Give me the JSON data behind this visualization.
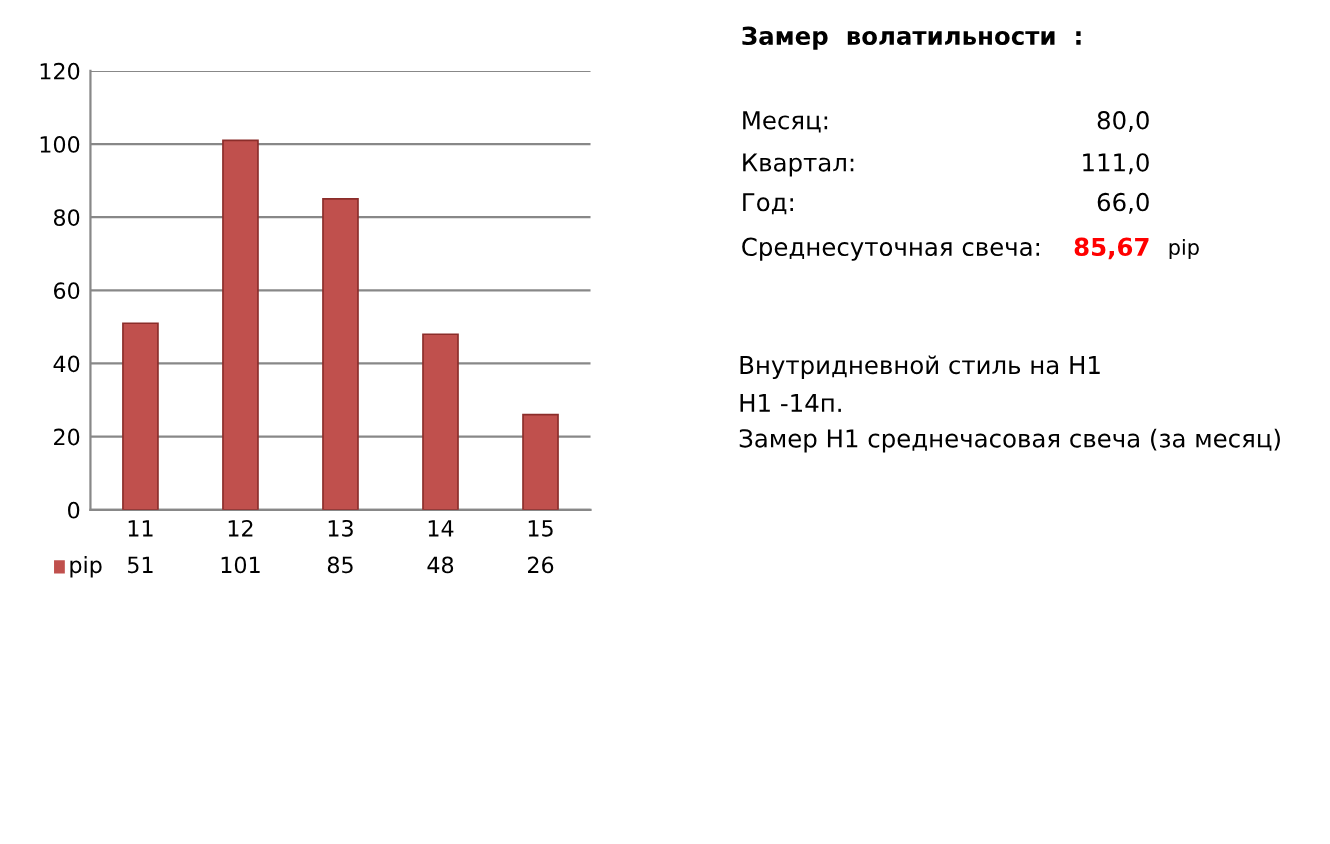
{
  "chart_data": {
    "type": "bar",
    "categories": [
      "11",
      "12",
      "13",
      "14",
      "15"
    ],
    "series": [
      {
        "name": "pip",
        "color": "#c0504d",
        "values": [
          51,
          101,
          85,
          48,
          26
        ]
      }
    ],
    "ylim": [
      0,
      120
    ],
    "yticks": [
      0,
      20,
      40,
      60,
      80,
      100,
      120
    ],
    "grid": "y",
    "data_labels": true,
    "legend": "bottom",
    "annotations": [
      "Замер  волатильности  :",
      "Месяц:",
      "80,0",
      "Квартал:",
      "111,0",
      "Год:",
      "66,0",
      "Среднесуточная свеча:",
      "85,67",
      "pip",
      "Внутридневной стиль на H1",
      "H1 -14п.",
      "Замер H1 среднечасовая свеча (за месяц)"
    ]
  }
}
